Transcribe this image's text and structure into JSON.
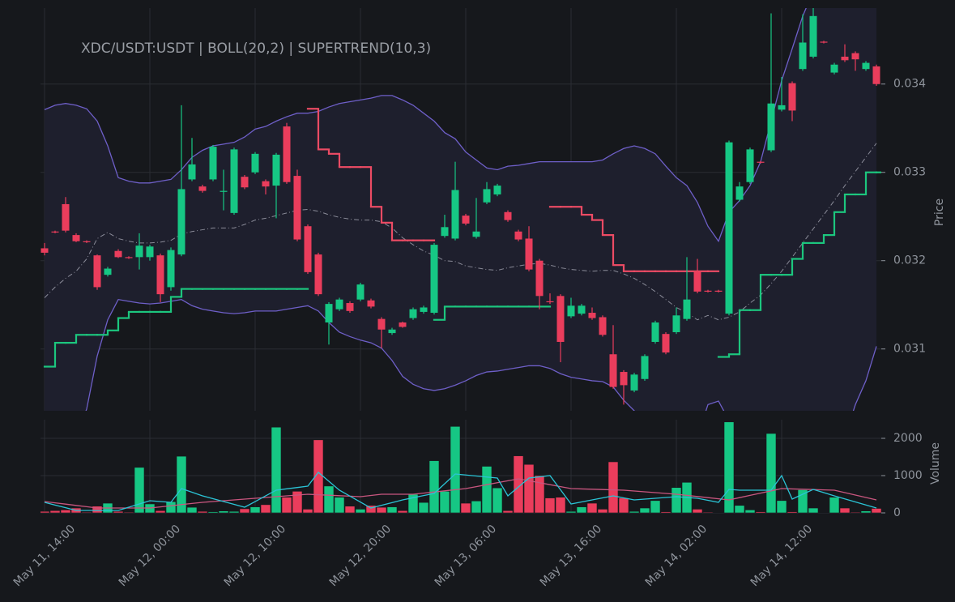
{
  "chart_data": {
    "type": "candlestick",
    "title": "XDC/USDT:USDT | BOLL(20,2) | SUPERTREND(10,3)",
    "ylabel": "Price",
    "categories": [
      "May 11, 14:00",
      null,
      null,
      null,
      null,
      null,
      null,
      null,
      null,
      null,
      "May 12, 00:00",
      null,
      null,
      null,
      null,
      null,
      null,
      null,
      null,
      null,
      "May 12, 10:00",
      null,
      null,
      null,
      null,
      null,
      null,
      null,
      null,
      null,
      "May 12, 20:00",
      null,
      null,
      null,
      null,
      null,
      null,
      null,
      null,
      null,
      "May 13, 06:00",
      null,
      null,
      null,
      null,
      null,
      null,
      null,
      null,
      null,
      "May 13, 16:00",
      null,
      null,
      null,
      null,
      null,
      null,
      null,
      null,
      null,
      "May 14, 02:00",
      null,
      null,
      null,
      null,
      null,
      null,
      null,
      null,
      null,
      "May 14, 12:00",
      null,
      null,
      null,
      null,
      null,
      null,
      null,
      null,
      null
    ],
    "open": [
      0.03214,
      0.03233,
      0.03264,
      0.03229,
      0.03222,
      0.03206,
      0.03184,
      0.03211,
      0.03204,
      0.03204,
      0.03204,
      0.03206,
      0.0317,
      0.03207,
      0.03292,
      0.03284,
      0.03292,
      0.03278,
      0.03254,
      0.03295,
      0.033,
      0.0329,
      0.03285,
      0.03352,
      0.03296,
      0.03239,
      0.03207,
      0.0313,
      0.03145,
      0.03152,
      0.03156,
      0.03155,
      0.03134,
      0.03118,
      0.0313,
      0.03135,
      0.03142,
      0.03141,
      0.03228,
      0.03225,
      0.03251,
      0.03227,
      0.03266,
      0.03275,
      0.03255,
      0.03233,
      0.03225,
      0.032,
      0.03154,
      0.0316,
      0.03137,
      0.0314,
      0.03141,
      0.03136,
      0.03094,
      0.03074,
      0.03053,
      0.03066,
      0.03108,
      0.03117,
      0.03119,
      0.03134,
      0.03188,
      0.03166,
      0.03166,
      0.0314,
      0.03269,
      0.03289,
      0.03312,
      0.03325,
      0.03371,
      0.03401,
      0.03417,
      0.03431,
      0.03448,
      0.03413,
      0.03431,
      0.03435,
      0.03417,
      0.0342
    ],
    "high": [
      0.0322,
      0.03234,
      0.03272,
      0.03231,
      0.03223,
      0.03207,
      0.03193,
      0.03213,
      0.03205,
      0.03231,
      0.03218,
      0.03208,
      0.03215,
      0.03376,
      0.03339,
      0.03286,
      0.03331,
      0.03303,
      0.03328,
      0.03297,
      0.03323,
      0.03292,
      0.03322,
      0.03356,
      0.03303,
      0.03241,
      0.03209,
      0.03153,
      0.03158,
      0.03154,
      0.03175,
      0.03157,
      0.03136,
      0.03124,
      0.03131,
      0.03147,
      0.03149,
      0.0322,
      0.03252,
      0.03312,
      0.03253,
      0.03271,
      0.03289,
      0.03287,
      0.03257,
      0.03235,
      0.03239,
      0.03202,
      0.03163,
      0.03162,
      0.03158,
      0.03151,
      0.03147,
      0.03138,
      0.03127,
      0.03076,
      0.03073,
      0.03094,
      0.03132,
      0.03119,
      0.03147,
      0.03204,
      0.03202,
      0.03167,
      0.03167,
      0.03336,
      0.03289,
      0.03328,
      0.03313,
      0.0348,
      0.03408,
      0.03403,
      0.03479,
      0.03486,
      0.03449,
      0.03424,
      0.03445,
      0.03437,
      0.03426,
      0.03422
    ],
    "low": [
      0.03206,
      0.03231,
      0.03232,
      0.03221,
      0.0322,
      0.03167,
      0.03182,
      0.03203,
      0.03202,
      0.0319,
      0.032,
      0.03153,
      0.03166,
      0.03205,
      0.0329,
      0.03277,
      0.0329,
      0.03257,
      0.03252,
      0.03281,
      0.03298,
      0.03275,
      0.03248,
      0.03287,
      0.03222,
      0.03185,
      0.0316,
      0.03105,
      0.03143,
      0.03141,
      0.03154,
      0.03146,
      0.03101,
      0.03116,
      0.03124,
      0.03133,
      0.0314,
      0.03139,
      0.03226,
      0.03223,
      0.0324,
      0.03225,
      0.03264,
      0.03273,
      0.03244,
      0.03222,
      0.03188,
      0.03145,
      0.03151,
      0.03085,
      0.03135,
      0.03138,
      0.03133,
      0.03114,
      0.03055,
      0.03037,
      0.03051,
      0.03064,
      0.03106,
      0.03094,
      0.03117,
      0.03132,
      0.03163,
      0.03164,
      0.03164,
      0.03138,
      0.03267,
      0.03287,
      0.0331,
      0.03323,
      0.03369,
      0.03358,
      0.03415,
      0.03429,
      0.03446,
      0.03411,
      0.03425,
      0.03415,
      0.03415,
      0.03398
    ],
    "close": [
      0.03209,
      0.03232,
      0.03234,
      0.03222,
      0.03221,
      0.0317,
      0.03191,
      0.03204,
      0.03203,
      0.03217,
      0.03216,
      0.03162,
      0.03212,
      0.03281,
      0.03309,
      0.03279,
      0.03329,
      0.03279,
      0.03326,
      0.03283,
      0.03321,
      0.03284,
      0.0332,
      0.03289,
      0.03224,
      0.03187,
      0.03162,
      0.03151,
      0.03156,
      0.03143,
      0.03173,
      0.03148,
      0.03122,
      0.03122,
      0.03125,
      0.03145,
      0.03147,
      0.03218,
      0.03238,
      0.0328,
      0.03242,
      0.03233,
      0.03281,
      0.03285,
      0.03246,
      0.03224,
      0.0319,
      0.0316,
      0.03153,
      0.03108,
      0.03149,
      0.03149,
      0.03135,
      0.03116,
      0.03057,
      0.03059,
      0.03071,
      0.03092,
      0.0313,
      0.03096,
      0.03138,
      0.03156,
      0.03165,
      0.03165,
      0.03165,
      0.03334,
      0.03284,
      0.03326,
      0.03311,
      0.03378,
      0.03376,
      0.0337,
      0.03447,
      0.03477,
      0.03447,
      0.03422,
      0.03427,
      0.03428,
      0.03424,
      0.034
    ],
    "up_color": "#16c784",
    "down_color": "#ea3d5c",
    "ylim": [
      0.0303,
      0.03486
    ],
    "yticks": [
      0.031,
      0.032,
      0.033,
      0.034
    ],
    "grid": true,
    "bollinger": {
      "color": "#6e5fc8",
      "middle_color": "#8a8b98",
      "fill": "#1e1f2d",
      "upper": [
        0.03371,
        0.03376,
        0.03378,
        0.03376,
        0.03372,
        0.03358,
        0.0333,
        0.03294,
        0.0329,
        0.03288,
        0.03288,
        0.0329,
        0.03292,
        0.03303,
        0.03317,
        0.03325,
        0.0333,
        0.03332,
        0.03334,
        0.0334,
        0.03349,
        0.03352,
        0.03358,
        0.03363,
        0.03367,
        0.03367,
        0.03369,
        0.03374,
        0.03378,
        0.0338,
        0.03382,
        0.03384,
        0.03387,
        0.03387,
        0.03382,
        0.03376,
        0.03367,
        0.03358,
        0.03345,
        0.03338,
        0.03323,
        0.03314,
        0.03305,
        0.03303,
        0.03307,
        0.03308,
        0.0331,
        0.03312,
        0.03312,
        0.03312,
        0.03312,
        0.03312,
        0.03312,
        0.03314,
        0.03321,
        0.03327,
        0.0333,
        0.03327,
        0.03321,
        0.03307,
        0.03294,
        0.03285,
        0.03266,
        0.03239,
        0.03222,
        0.03255,
        0.03268,
        0.03285,
        0.03312,
        0.03358,
        0.03404,
        0.0344,
        0.03477,
        0.03505,
        0.03523,
        0.03532,
        0.03537,
        0.03541,
        0.03541,
        0.03541
      ],
      "middle": [
        0.03158,
        0.0317,
        0.0318,
        0.03188,
        0.03202,
        0.03225,
        0.03232,
        0.03225,
        0.03222,
        0.0322,
        0.0322,
        0.03221,
        0.03223,
        0.0323,
        0.03233,
        0.03235,
        0.03237,
        0.03237,
        0.03237,
        0.03241,
        0.03246,
        0.03248,
        0.03251,
        0.03254,
        0.03257,
        0.03258,
        0.03256,
        0.03252,
        0.03249,
        0.03247,
        0.03246,
        0.03246,
        0.03244,
        0.03237,
        0.03226,
        0.03218,
        0.03211,
        0.03206,
        0.032,
        0.03199,
        0.03194,
        0.03192,
        0.0319,
        0.03189,
        0.03192,
        0.03194,
        0.03196,
        0.03197,
        0.03195,
        0.03192,
        0.0319,
        0.03189,
        0.03188,
        0.03189,
        0.03189,
        0.03185,
        0.0318,
        0.03173,
        0.03165,
        0.03156,
        0.03147,
        0.03141,
        0.03133,
        0.03138,
        0.03133,
        0.03136,
        0.03142,
        0.03152,
        0.03161,
        0.03174,
        0.03188,
        0.03204,
        0.0322,
        0.03236,
        0.03252,
        0.03268,
        0.03285,
        0.03301,
        0.03317,
        0.03333
      ],
      "lower": [
        0.02945,
        0.02964,
        0.02982,
        0.03,
        0.03032,
        0.03092,
        0.03133,
        0.03156,
        0.03154,
        0.03152,
        0.03151,
        0.03152,
        0.03154,
        0.03156,
        0.03149,
        0.03145,
        0.03143,
        0.03141,
        0.0314,
        0.03141,
        0.03143,
        0.03143,
        0.03143,
        0.03145,
        0.03147,
        0.03149,
        0.03143,
        0.0313,
        0.03119,
        0.03114,
        0.0311,
        0.03107,
        0.03101,
        0.03087,
        0.03069,
        0.0306,
        0.03055,
        0.03053,
        0.03055,
        0.03059,
        0.03064,
        0.0307,
        0.03074,
        0.03075,
        0.03077,
        0.03079,
        0.03081,
        0.03081,
        0.03078,
        0.03072,
        0.03068,
        0.03066,
        0.03064,
        0.03063,
        0.03057,
        0.03042,
        0.0303,
        0.03019,
        0.03009,
        0.03005,
        0.03,
        0.02996,
        0.03,
        0.03037,
        0.03041,
        0.03019,
        0.02982,
        0.02964,
        0.02945,
        0.02927,
        0.02909,
        0.02899,
        0.02899,
        0.02918,
        0.02945,
        0.02973,
        0.03,
        0.03037,
        0.03064,
        0.03103
      ]
    },
    "supertrend": {
      "up_color": "#1cc67e",
      "down_color": "#ec4b64",
      "up": [
        0.0308,
        0.03107,
        0.03107,
        0.03116,
        0.03116,
        0.03116,
        0.03121,
        0.03135,
        0.03142,
        0.03142,
        0.03142,
        0.03142,
        0.03159,
        0.03168,
        0.03168,
        0.03168,
        0.03168,
        0.03168,
        0.03168,
        0.03168,
        0.03168,
        0.03168,
        0.03168,
        0.03168,
        0.03168,
        null,
        null,
        null,
        null,
        null,
        null,
        null,
        null,
        null,
        null,
        null,
        null,
        0.03133,
        0.03148,
        0.03148,
        0.03148,
        0.03148,
        0.03148,
        0.03148,
        0.03148,
        0.03148,
        0.03148,
        0.03148,
        null,
        null,
        null,
        null,
        null,
        null,
        null,
        null,
        null,
        null,
        null,
        null,
        null,
        null,
        null,
        null,
        0.03091,
        0.03094,
        0.03144,
        0.03144,
        0.03184,
        0.03184,
        0.03184,
        0.03202,
        0.0322,
        0.0322,
        0.03229,
        0.03255,
        0.03275,
        0.03275,
        0.033,
        0.033
      ],
      "down": [
        null,
        null,
        null,
        null,
        null,
        null,
        null,
        null,
        null,
        null,
        null,
        null,
        null,
        null,
        null,
        null,
        null,
        null,
        null,
        null,
        null,
        null,
        null,
        null,
        null,
        0.03372,
        0.03326,
        0.03321,
        0.03306,
        0.03306,
        0.03306,
        0.03261,
        0.03243,
        0.03223,
        0.03223,
        0.03223,
        0.03223,
        null,
        null,
        null,
        null,
        null,
        null,
        null,
        null,
        null,
        null,
        null,
        0.03261,
        0.03261,
        0.03261,
        0.03252,
        0.03246,
        0.03229,
        0.03195,
        0.03188,
        0.03188,
        0.03188,
        0.03188,
        0.03188,
        0.03188,
        0.03188,
        0.03188,
        0.03188,
        null,
        null,
        null,
        null,
        null,
        null,
        null,
        null,
        null,
        null,
        null,
        null,
        null,
        null,
        null,
        null
      ]
    },
    "volume": {
      "ylabel": "Volume",
      "ylim": [
        0,
        2500
      ],
      "yticks": [
        0,
        1000,
        2000
      ],
      "fast_color": "#2bc4d6",
      "slow_color": "#c9567f",
      "values": [
        40,
        60,
        80,
        130,
        20,
        180,
        260,
        40,
        20,
        1220,
        240,
        60,
        300,
        1520,
        150,
        40,
        30,
        50,
        40,
        110,
        160,
        220,
        2300,
        420,
        580,
        100,
        1960,
        720,
        420,
        180,
        100,
        200,
        150,
        160,
        60,
        500,
        280,
        1400,
        580,
        2320,
        260,
        320,
        1250,
        670,
        60,
        1530,
        1300,
        1000,
        400,
        420,
        40,
        160,
        260,
        100,
        1370,
        400,
        40,
        130,
        330,
        30,
        680,
        820,
        100,
        20,
        10,
        2440,
        200,
        80,
        30,
        2130,
        330,
        30,
        620,
        130,
        10,
        420,
        130,
        20,
        50,
        120
      ],
      "ma_fast": [
        283,
        210,
        138,
        65,
        65,
        65,
        65,
        65,
        152,
        239,
        326,
        304,
        283,
        652,
        554,
        457,
        381,
        304,
        228,
        152,
        304,
        457,
        609,
        645,
        681,
        717,
        1087,
        848,
        609,
        449,
        290,
        130,
        203,
        275,
        348,
        406,
        464,
        522,
        783,
        1043,
        1016,
        989,
        962,
        935,
        457,
        696,
        935,
        968,
        1000,
        620,
        239,
        294,
        348,
        403,
        457,
        403,
        348,
        370,
        391,
        413,
        435,
        413,
        391,
        337,
        283,
        630,
        609,
        609,
        609,
        609,
        1000,
        370,
        500,
        630,
        544,
        457,
        376,
        294,
        212,
        130
      ],
      "ma_slow": [
        304,
        269,
        235,
        200,
        165,
        130,
        130,
        130,
        130,
        130,
        130,
        161,
        191,
        222,
        252,
        283,
        305,
        326,
        348,
        369,
        391,
        413,
        435,
        456,
        478,
        500,
        487,
        474,
        461,
        448,
        435,
        467,
        500,
        500,
        500,
        500,
        530,
        561,
        591,
        622,
        652,
        704,
        757,
        809,
        861,
        913,
        861,
        809,
        757,
        704,
        652,
        643,
        635,
        626,
        617,
        609,
        587,
        565,
        544,
        522,
        500,
        470,
        439,
        409,
        378,
        348,
        409,
        470,
        530,
        591,
        652,
        643,
        635,
        626,
        617,
        609,
        544,
        478,
        413,
        348
      ]
    }
  }
}
